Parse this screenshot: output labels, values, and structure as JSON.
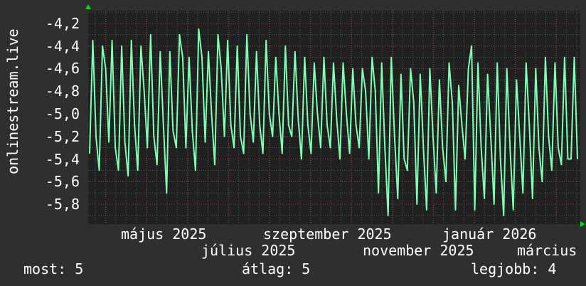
{
  "chart_data": {
    "type": "line",
    "ylabel": "onlinestream.live",
    "ylim": [
      -5.976,
      -4.087
    ],
    "yticks": [
      "-4,2",
      "-4,4",
      "-4,6",
      "-4,8",
      "-5,0",
      "-5,2",
      "-5,4",
      "-5,6",
      "-5,8"
    ],
    "ytick_values": [
      -4.2,
      -4.4,
      -4.6,
      -4.8,
      -5.0,
      -5.2,
      -5.4,
      -5.6,
      -5.8
    ],
    "xticks": [
      "május 2025",
      "július 2025",
      "szeptember 2025",
      "november 2025",
      "január 2026",
      "március"
    ],
    "grid": true,
    "line_color": "#7dffb4",
    "values": [
      -5.35,
      -4.35,
      -5.2,
      -5.5,
      -4.4,
      -4.6,
      -5.25,
      -4.35,
      -5.3,
      -5.5,
      -4.4,
      -5.25,
      -5.55,
      -4.35,
      -5.1,
      -5.5,
      -4.4,
      -4.8,
      -5.3,
      -4.3,
      -5.2,
      -5.45,
      -4.45,
      -5.1,
      -5.7,
      -4.45,
      -5.15,
      -5.3,
      -4.3,
      -4.5,
      -5.3,
      -4.5,
      -5.15,
      -5.5,
      -4.25,
      -4.5,
      -5.25,
      -4.45,
      -5.0,
      -5.45,
      -4.3,
      -4.6,
      -5.2,
      -4.35,
      -5.1,
      -5.3,
      -4.4,
      -5.2,
      -5.35,
      -4.3,
      -5.0,
      -5.25,
      -4.45,
      -5.1,
      -5.35,
      -4.35,
      -5.0,
      -5.2,
      -4.5,
      -5.0,
      -5.35,
      -4.4,
      -5.1,
      -5.2,
      -4.45,
      -5.05,
      -5.4,
      -4.5,
      -5.1,
      -5.35,
      -4.55,
      -5.0,
      -5.3,
      -4.5,
      -5.1,
      -5.3,
      -4.55,
      -5.05,
      -5.4,
      -4.55,
      -5.0,
      -5.35,
      -4.6,
      -5.1,
      -5.3,
      -4.6,
      -4.8,
      -5.4,
      -4.5,
      -4.8,
      -5.7,
      -4.55,
      -5.3,
      -5.9,
      -4.5,
      -5.2,
      -5.75,
      -4.65,
      -5.4,
      -5.5,
      -4.6,
      -4.9,
      -5.8,
      -4.65,
      -5.3,
      -5.85,
      -4.6,
      -5.2,
      -5.7,
      -4.7,
      -5.3,
      -5.6,
      -4.55,
      -4.9,
      -5.85,
      -4.75,
      -5.1,
      -5.4,
      -4.6,
      -4.4,
      -5.85,
      -4.55,
      -5.3,
      -5.75,
      -4.65,
      -5.2,
      -5.8,
      -4.55,
      -5.4,
      -5.9,
      -4.6,
      -5.3,
      -5.85,
      -4.7,
      -5.2,
      -5.7,
      -4.55,
      -5.1,
      -5.75,
      -4.6,
      -5.3,
      -5.6,
      -4.5,
      -5.2,
      -5.5,
      -4.55,
      -5.3,
      -5.45,
      -4.5,
      -5.4,
      -5.4,
      -4.5,
      -5.4
    ]
  },
  "stats": {
    "current": "most: 5",
    "average": "átlag: 5",
    "best": "legjobb: 4"
  }
}
